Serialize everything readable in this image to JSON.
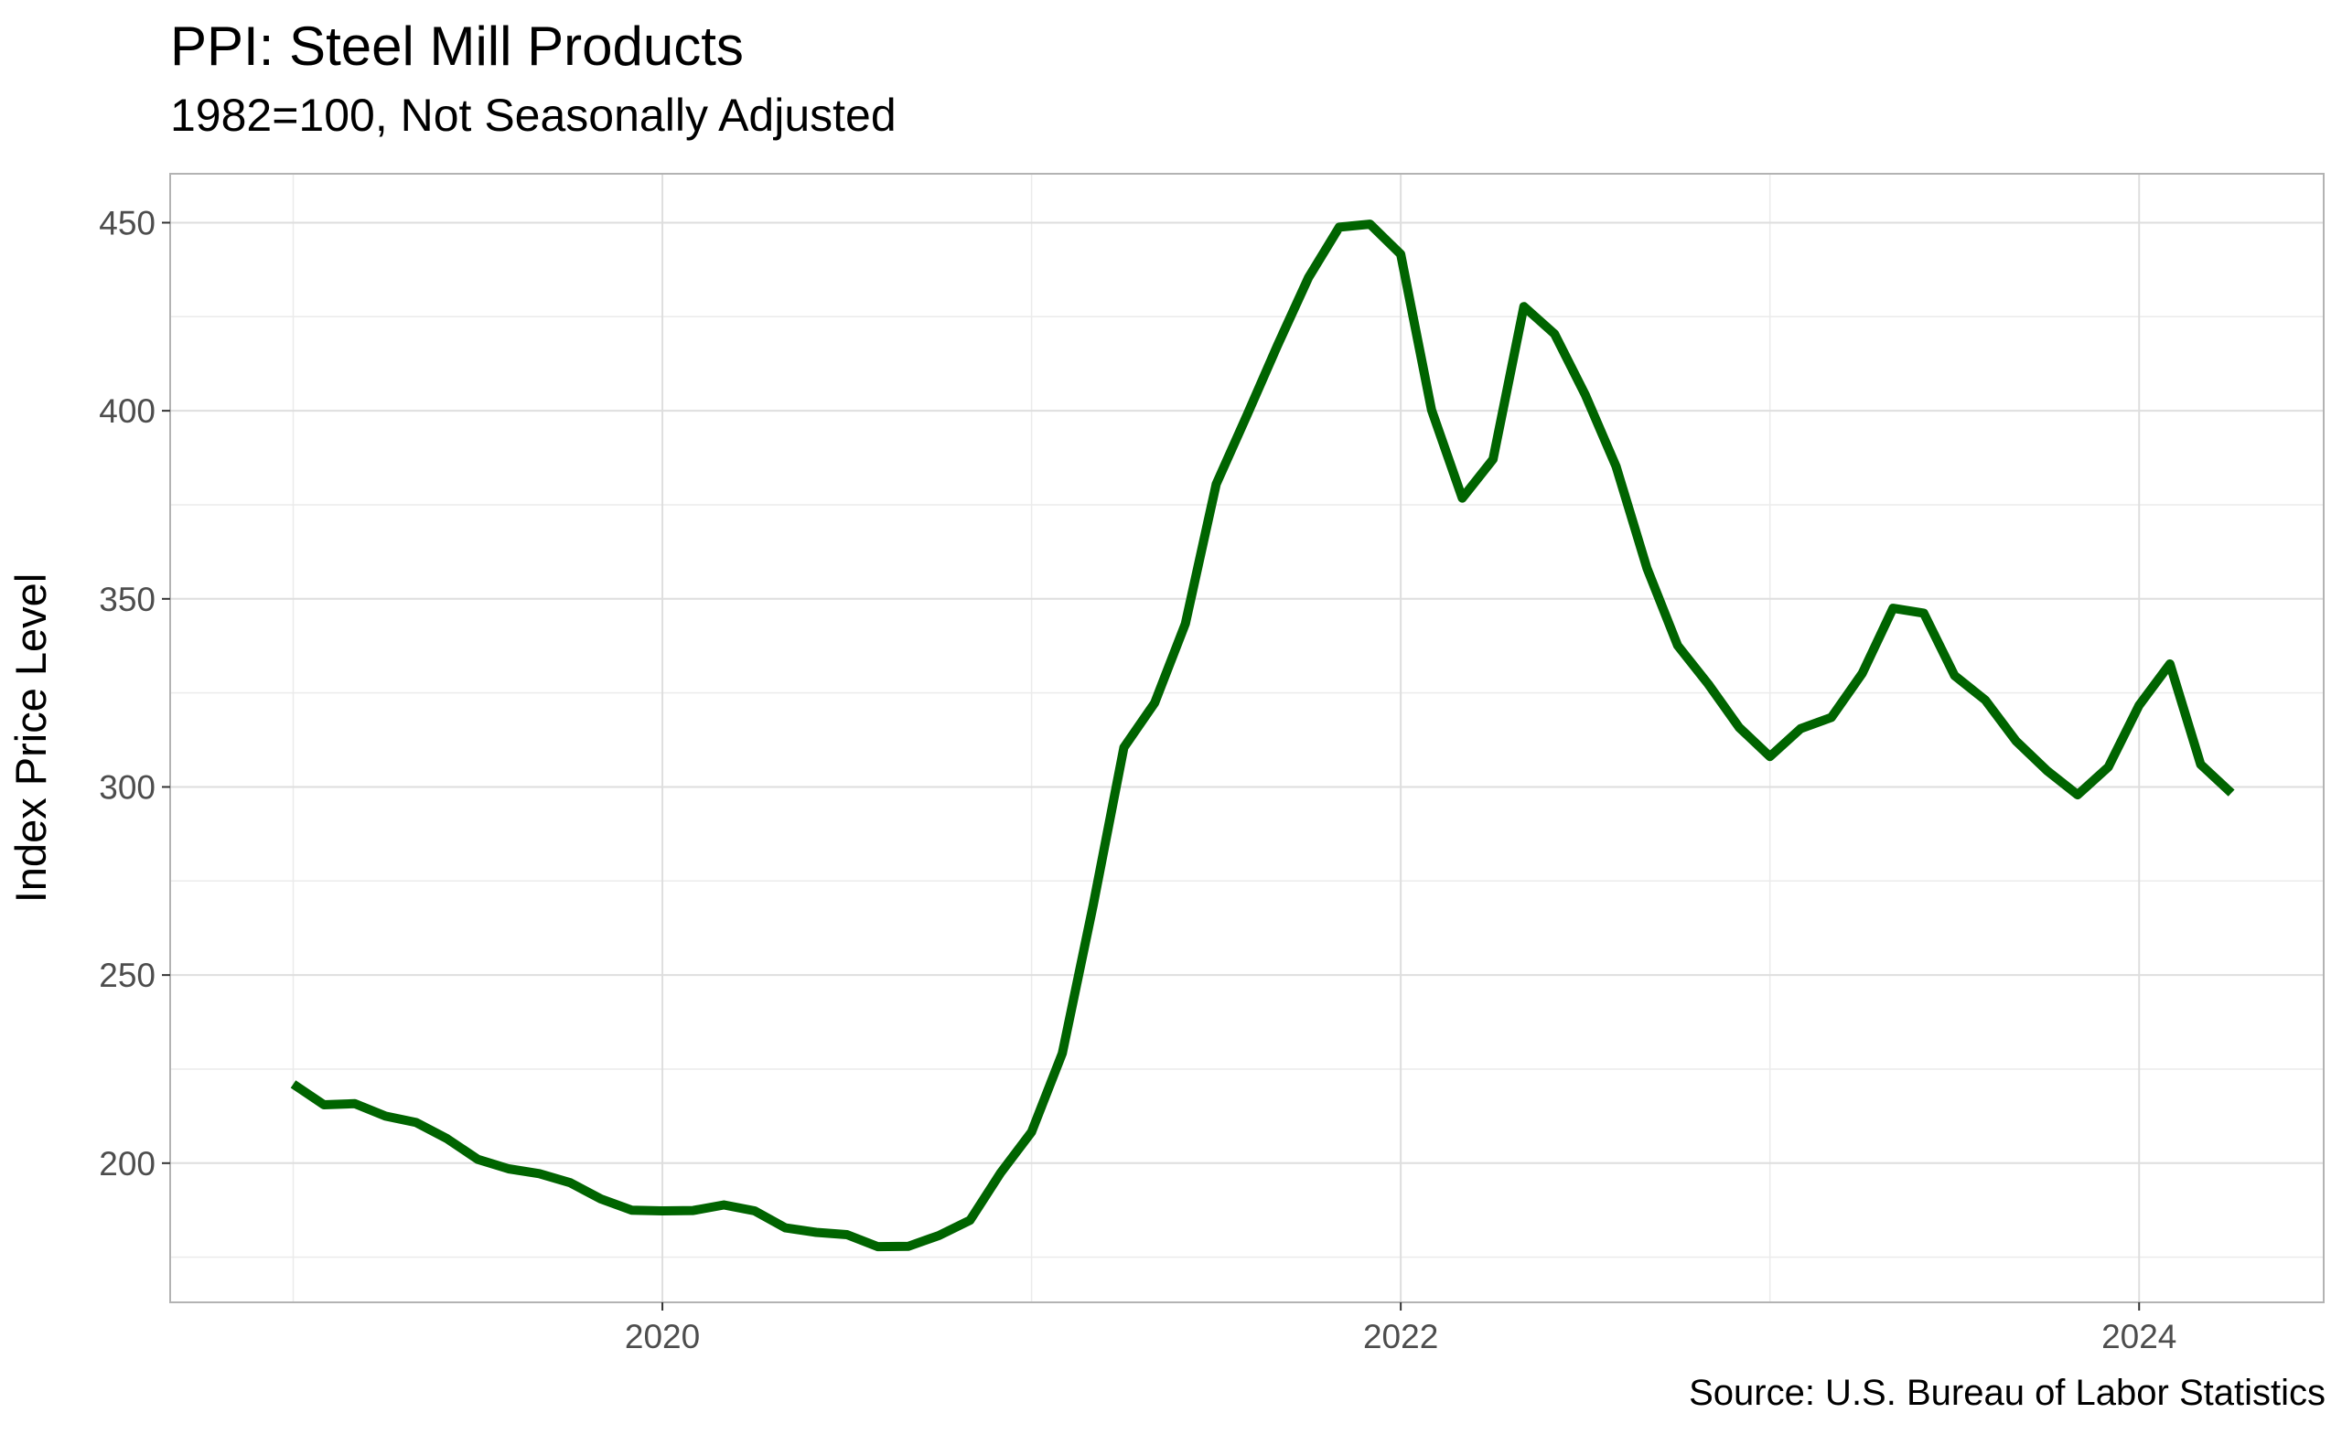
{
  "chart_data": {
    "type": "line",
    "title": "PPI: Steel Mill Products",
    "subtitle": "1982=100, Not Seasonally Adjusted",
    "caption": "Source: U.S. Bureau of Labor Statistics",
    "xlabel": "",
    "ylabel": "Index Price Level",
    "xlim": [
      "2018-09-01",
      "2024-07-01"
    ],
    "ylim": [
      163,
      463
    ],
    "x_ticks": [
      2020,
      2022,
      2024
    ],
    "y_ticks": [
      200,
      250,
      300,
      350,
      400,
      450
    ],
    "grid": true,
    "legend": "none",
    "series": [
      {
        "color": "#006400",
        "x": [
          "2019-01-01",
          "2019-02-01",
          "2019-03-01",
          "2019-04-01",
          "2019-05-01",
          "2019-06-01",
          "2019-07-01",
          "2019-08-01",
          "2019-09-01",
          "2019-10-01",
          "2019-11-01",
          "2019-12-01",
          "2020-01-01",
          "2020-02-01",
          "2020-03-01",
          "2020-04-01",
          "2020-05-01",
          "2020-06-01",
          "2020-07-01",
          "2020-08-01",
          "2020-09-01",
          "2020-10-01",
          "2020-11-01",
          "2020-12-01",
          "2021-01-01",
          "2021-02-01",
          "2021-03-01",
          "2021-04-01",
          "2021-05-01",
          "2021-06-01",
          "2021-07-01",
          "2021-08-01",
          "2021-09-01",
          "2021-10-01",
          "2021-11-01",
          "2021-12-01",
          "2022-01-01",
          "2022-02-01",
          "2022-03-01",
          "2022-04-01",
          "2022-05-01",
          "2022-06-01",
          "2022-07-01",
          "2022-08-01",
          "2022-09-01",
          "2022-10-01",
          "2022-11-01",
          "2022-12-01",
          "2023-01-01",
          "2023-02-01",
          "2023-03-01",
          "2023-04-01",
          "2023-05-01",
          "2023-06-01",
          "2023-07-01",
          "2023-08-01",
          "2023-09-01",
          "2023-10-01",
          "2023-11-01",
          "2023-12-01",
          "2024-01-01",
          "2024-02-01",
          "2024-03-01",
          "2024-04-01"
        ],
        "values": [
          221,
          215.5,
          215.8,
          212.5,
          210.8,
          206.5,
          201,
          198.5,
          197.2,
          194.8,
          190.5,
          187.5,
          187.3,
          187.4,
          188.9,
          187.3,
          182.8,
          181.6,
          181,
          177.8,
          177.9,
          180.8,
          184.8,
          197.5,
          208.3,
          229.2,
          268.5,
          310.5,
          322.3,
          343.4,
          380.5,
          398.8,
          417.5,
          435.4,
          448.8,
          449.6,
          441.6,
          400.2,
          376.8,
          387.1,
          427.7,
          420.4,
          404.2,
          385.2,
          358.2,
          337.6,
          327.3,
          315.8,
          308.1,
          315.5,
          318.5,
          330.2,
          347.5,
          346.2,
          329.6,
          323.1,
          312.2,
          304.4,
          297.9,
          305.3,
          321.7,
          332.7,
          306,
          298.4
        ]
      }
    ]
  }
}
